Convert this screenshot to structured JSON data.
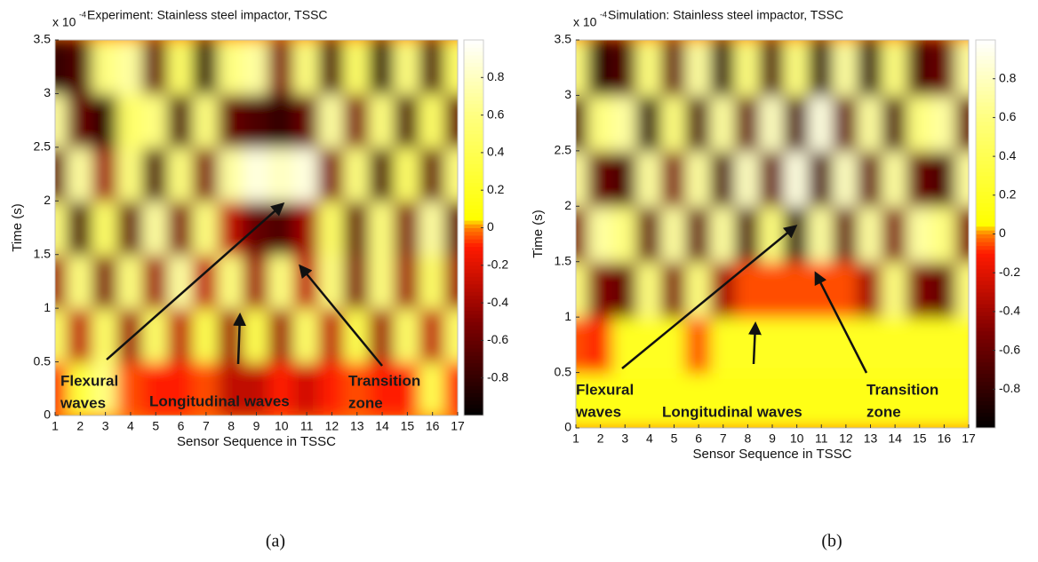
{
  "chart_data": [
    {
      "type": "heatmap",
      "title": "Experiment: Stainless steel impactor, TSSC",
      "x_label": "Sensor Sequence in TSSC",
      "y_label": "Time (s)",
      "y_scale_label": "x 10",
      "y_scale_exponent": "-4",
      "caption": "(a)",
      "x": [
        1,
        2,
        3,
        4,
        5,
        6,
        7,
        8,
        9,
        10,
        11,
        12,
        13,
        14,
        15,
        16,
        17
      ],
      "y": [
        0.25,
        0.75,
        1.25,
        1.75,
        2.25,
        2.75,
        3.25
      ],
      "xlim": [
        1,
        17
      ],
      "ylim": [
        0,
        3.5
      ],
      "xticks": [
        1,
        2,
        3,
        4,
        5,
        6,
        7,
        8,
        9,
        10,
        11,
        12,
        13,
        14,
        15,
        16,
        17
      ],
      "yticks": [
        0,
        0.5,
        1,
        1.5,
        2,
        2.5,
        3,
        3.5
      ],
      "zlim": [
        -1,
        1
      ],
      "zticks": [
        -0.8,
        -0.6,
        -0.4,
        -0.2,
        0,
        0.2,
        0.4,
        0.6,
        0.8
      ],
      "z": [
        [
          -0.1,
          0.3,
          0.6,
          -0.05,
          -0.1,
          -0.1,
          -0.05,
          -0.3,
          -0.3,
          -0.1,
          -0.25,
          -0.1,
          -0.05,
          -0.1,
          -0.1,
          0.4,
          -0.1
        ],
        [
          0.5,
          -0.3,
          0.5,
          -0.4,
          0.5,
          -0.3,
          0.4,
          -0.4,
          0.4,
          -0.4,
          0.5,
          -0.3,
          0.4,
          -0.4,
          0.5,
          -0.3,
          0.5
        ],
        [
          -0.4,
          0.6,
          -0.5,
          0.6,
          -0.4,
          0.7,
          -0.3,
          0.6,
          -0.4,
          0.6,
          -0.3,
          0.6,
          -0.5,
          0.6,
          -0.4,
          0.5,
          -0.4
        ],
        [
          0.6,
          -0.7,
          0.5,
          -0.6,
          0.7,
          -0.5,
          0.6,
          -0.3,
          -0.6,
          -0.7,
          -0.4,
          0.5,
          -0.6,
          0.6,
          -0.5,
          0.7,
          -0.6
        ],
        [
          -0.6,
          0.7,
          -0.4,
          0.6,
          -0.7,
          0.6,
          -0.5,
          0.7,
          0.9,
          0.8,
          0.9,
          -0.5,
          0.6,
          -0.7,
          0.5,
          -0.6,
          0.6
        ],
        [
          0.7,
          -0.6,
          -0.8,
          0.5,
          0.6,
          -0.7,
          0.6,
          -0.6,
          -0.7,
          -0.8,
          -0.6,
          0.7,
          -0.5,
          0.6,
          -0.7,
          0.5,
          -0.6
        ],
        [
          -0.8,
          -0.7,
          0.6,
          0.7,
          -0.6,
          0.5,
          -0.8,
          0.6,
          0.7,
          -0.5,
          0.6,
          -0.7,
          0.5,
          -0.8,
          0.6,
          -0.7,
          0.5
        ]
      ],
      "annotations": [
        [
          "Flexural",
          "waves"
        ],
        [
          "Longitudinal waves"
        ],
        [
          "Transition",
          "zone"
        ]
      ]
    },
    {
      "type": "heatmap",
      "title": "Simulation: Stainless steel impactor, TSSC",
      "x_label": "Sensor Sequence in TSSC",
      "y_label": "Time (s)",
      "y_scale_label": "x 10",
      "y_scale_exponent": "-4",
      "caption": "(b)",
      "x": [
        1,
        2,
        3,
        4,
        5,
        6,
        7,
        8,
        9,
        10,
        11,
        12,
        13,
        14,
        15,
        16,
        17
      ],
      "y": [
        0.25,
        0.75,
        1.25,
        1.75,
        2.25,
        2.75,
        3.25
      ],
      "xlim": [
        1,
        17
      ],
      "ylim": [
        0,
        3.5
      ],
      "xticks": [
        1,
        2,
        3,
        4,
        5,
        6,
        7,
        8,
        9,
        10,
        11,
        12,
        13,
        14,
        15,
        16,
        17
      ],
      "yticks": [
        0,
        0.5,
        1,
        1.5,
        2,
        2.5,
        3,
        3.5
      ],
      "zlim": [
        -1,
        1
      ],
      "zticks": [
        -0.8,
        -0.6,
        -0.4,
        -0.2,
        0,
        0.2,
        0.4,
        0.6,
        0.8
      ],
      "z": [
        [
          0.15,
          0.15,
          0.15,
          0.15,
          0.15,
          0.15,
          0.15,
          0.15,
          0.15,
          0.15,
          0.15,
          0.15,
          0.15,
          0.15,
          0.15,
          0.15,
          0.15
        ],
        [
          -0.05,
          -0.1,
          0.2,
          0.2,
          0.2,
          -0.05,
          0.2,
          0.2,
          0.2,
          0.2,
          0.2,
          0.2,
          0.2,
          0.2,
          0.2,
          0.2,
          0.2
        ],
        [
          0.6,
          -0.5,
          -0.6,
          0.6,
          -0.5,
          0.6,
          -0.4,
          -0.05,
          -0.05,
          -0.05,
          -0.05,
          -0.05,
          -0.4,
          0.6,
          -0.5,
          -0.6,
          0.6
        ],
        [
          -0.5,
          0.7,
          0.6,
          -0.6,
          0.7,
          -0.6,
          0.7,
          -0.7,
          0.6,
          -0.8,
          0.7,
          -0.6,
          0.7,
          -0.5,
          0.7,
          0.6,
          -0.5
        ],
        [
          0.7,
          -0.6,
          -0.7,
          0.7,
          -0.5,
          0.7,
          -0.7,
          0.8,
          -0.6,
          0.9,
          -0.7,
          0.8,
          -0.6,
          0.7,
          -0.6,
          -0.7,
          0.7
        ],
        [
          -0.7,
          0.6,
          0.7,
          -0.8,
          0.6,
          -0.7,
          0.7,
          -0.6,
          0.8,
          -0.7,
          0.9,
          -0.6,
          0.7,
          -0.7,
          0.6,
          0.7,
          -0.6
        ],
        [
          0.6,
          -0.8,
          -0.7,
          0.6,
          -0.6,
          0.7,
          -0.8,
          0.6,
          -0.7,
          0.6,
          -0.8,
          0.7,
          -0.8,
          0.6,
          -0.7,
          -0.6,
          0.7
        ]
      ],
      "annotations": [
        [
          "Flexural",
          "waves"
        ],
        [
          "Longitudinal waves"
        ],
        [
          "Transition",
          "zone"
        ]
      ]
    }
  ]
}
